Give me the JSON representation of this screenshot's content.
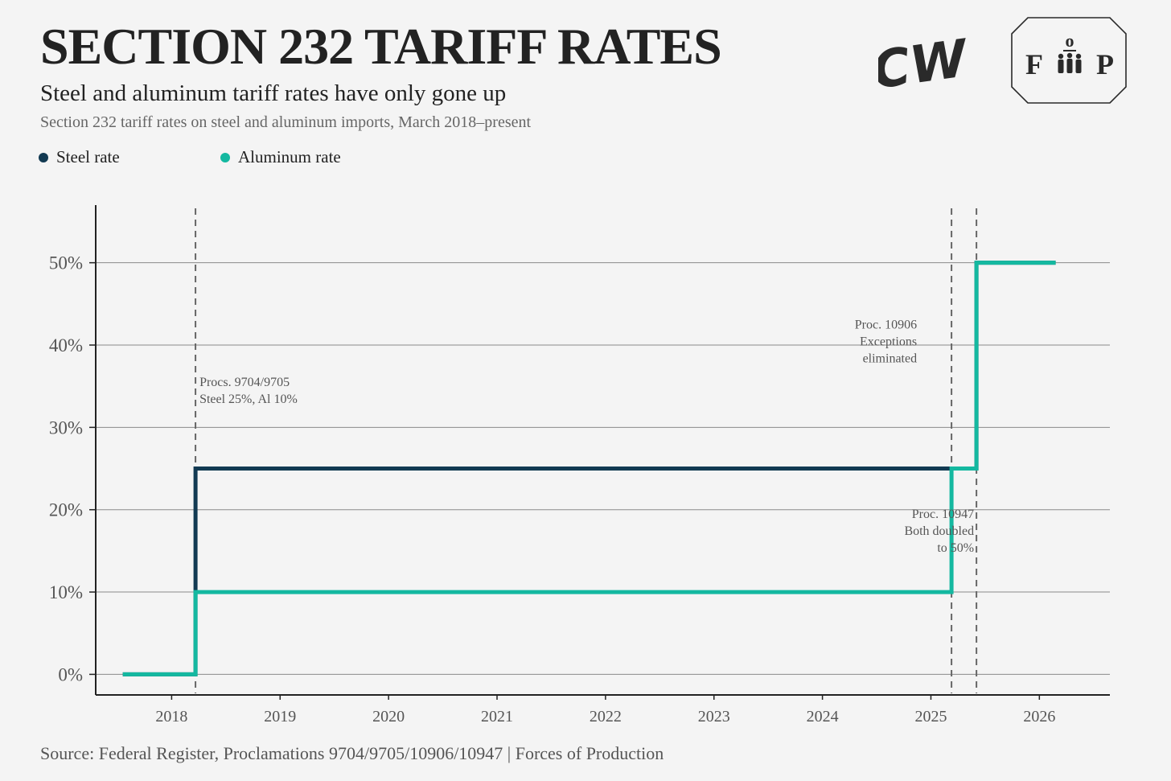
{
  "header": {
    "title": "SECTION 232 TARIFF RATES",
    "subtitle": "Steel and aluminum tariff rates have only gone up",
    "description": "Section 232 tariff rates on steel and aluminum imports, March 2018–present"
  },
  "legend": {
    "items": [
      {
        "label": "Steel rate",
        "color": "#123a52"
      },
      {
        "label": "Aluminum rate",
        "color": "#14b8a0"
      }
    ]
  },
  "logos": {
    "left": "CW",
    "right": {
      "top": "o",
      "left": "F",
      "right": "P"
    }
  },
  "chart_data": {
    "type": "line",
    "step": true,
    "title": "SECTION 232 TARIFF RATES",
    "xlabel": "",
    "ylabel": "",
    "xlim": [
      2017.3,
      2026.65
    ],
    "ylim": [
      -2.5,
      57
    ],
    "x_ticks": [
      2018,
      2019,
      2020,
      2021,
      2022,
      2023,
      2024,
      2025,
      2026
    ],
    "x_tick_labels": [
      "2018",
      "2019",
      "2020",
      "2021",
      "2022",
      "2023",
      "2024",
      "2025",
      "2026"
    ],
    "y_ticks": [
      0,
      10,
      20,
      30,
      40,
      50
    ],
    "y_tick_labels": [
      "0%",
      "10%",
      "20%",
      "30%",
      "40%",
      "50%"
    ],
    "grid": true,
    "series": [
      {
        "name": "Steel rate",
        "color": "#123a52",
        "points": [
          [
            2017.55,
            0
          ],
          [
            2018.22,
            0
          ],
          [
            2018.22,
            25
          ],
          [
            2025.19,
            25
          ],
          [
            2025.19,
            25
          ],
          [
            2025.42,
            25
          ],
          [
            2025.42,
            50
          ],
          [
            2026.15,
            50
          ]
        ]
      },
      {
        "name": "Aluminum rate",
        "color": "#14b8a0",
        "points": [
          [
            2017.55,
            0
          ],
          [
            2018.22,
            0
          ],
          [
            2018.22,
            10
          ],
          [
            2025.19,
            10
          ],
          [
            2025.19,
            25
          ],
          [
            2025.42,
            25
          ],
          [
            2025.42,
            50
          ],
          [
            2026.15,
            50
          ]
        ]
      }
    ],
    "events": [
      {
        "x": 2018.22,
        "lines": [
          "Procs. 9704/9705",
          "Steel 25%, Al 10%"
        ],
        "label_y": 35,
        "anchor": "start"
      },
      {
        "x": 2025.19,
        "lines": [
          "Proc. 10906",
          "Exceptions",
          "eliminated"
        ],
        "label_y": 42,
        "anchor": "end"
      },
      {
        "x": 2025.42,
        "lines": [
          "Proc. 10947",
          "Both doubled",
          "to 50%"
        ],
        "label_y": 19,
        "anchor": "end"
      }
    ]
  },
  "footer": {
    "source": "Source: Federal Register, Proclamations 9704/9705/10906/10947 | Forces of Production"
  }
}
